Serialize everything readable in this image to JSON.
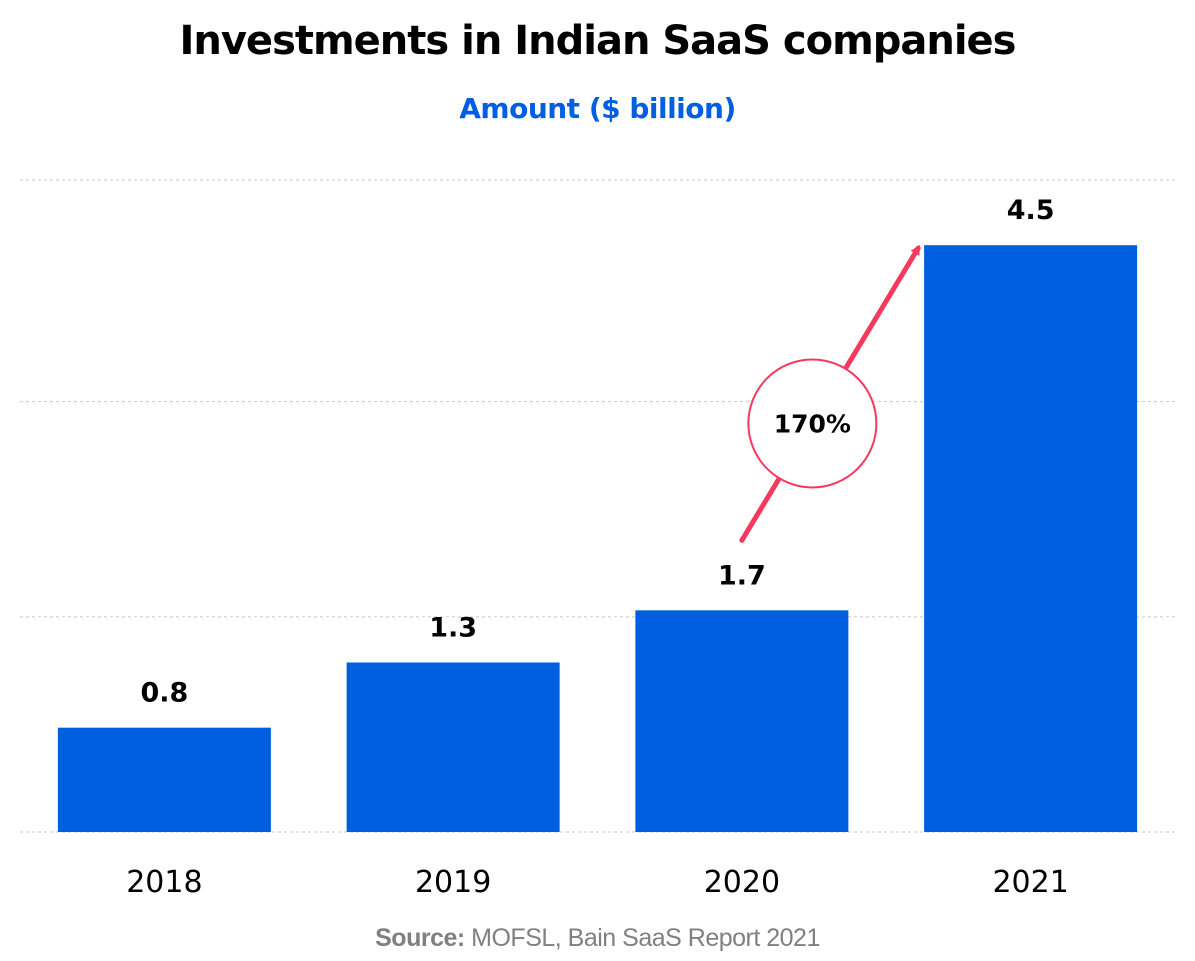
{
  "colors": {
    "bar": "#005EE0",
    "subtitle": "#005EE0",
    "arrow": "#F43A5C",
    "gridline": "#C8C8C8",
    "source": "#808080"
  },
  "source": {
    "label": "Source:",
    "text": " MOFSL, Bain SaaS Report 2021"
  },
  "annotation": {
    "growth_label": "170%",
    "from_category": "2020",
    "to_category": "2021"
  },
  "chart_data": {
    "type": "bar",
    "title": "Investments in Indian SaaS companies",
    "subtitle": "Amount ($ billion)",
    "categories": [
      "2018",
      "2019",
      "2020",
      "2021"
    ],
    "values": [
      0.8,
      1.3,
      1.7,
      4.5
    ],
    "value_labels": [
      "0.8",
      "1.3",
      "1.7",
      "4.5"
    ],
    "ylim": [
      0,
      5
    ],
    "gridlines": [
      0,
      1.65,
      3.3,
      5
    ],
    "grid": true,
    "xlabel": "",
    "ylabel": ""
  }
}
